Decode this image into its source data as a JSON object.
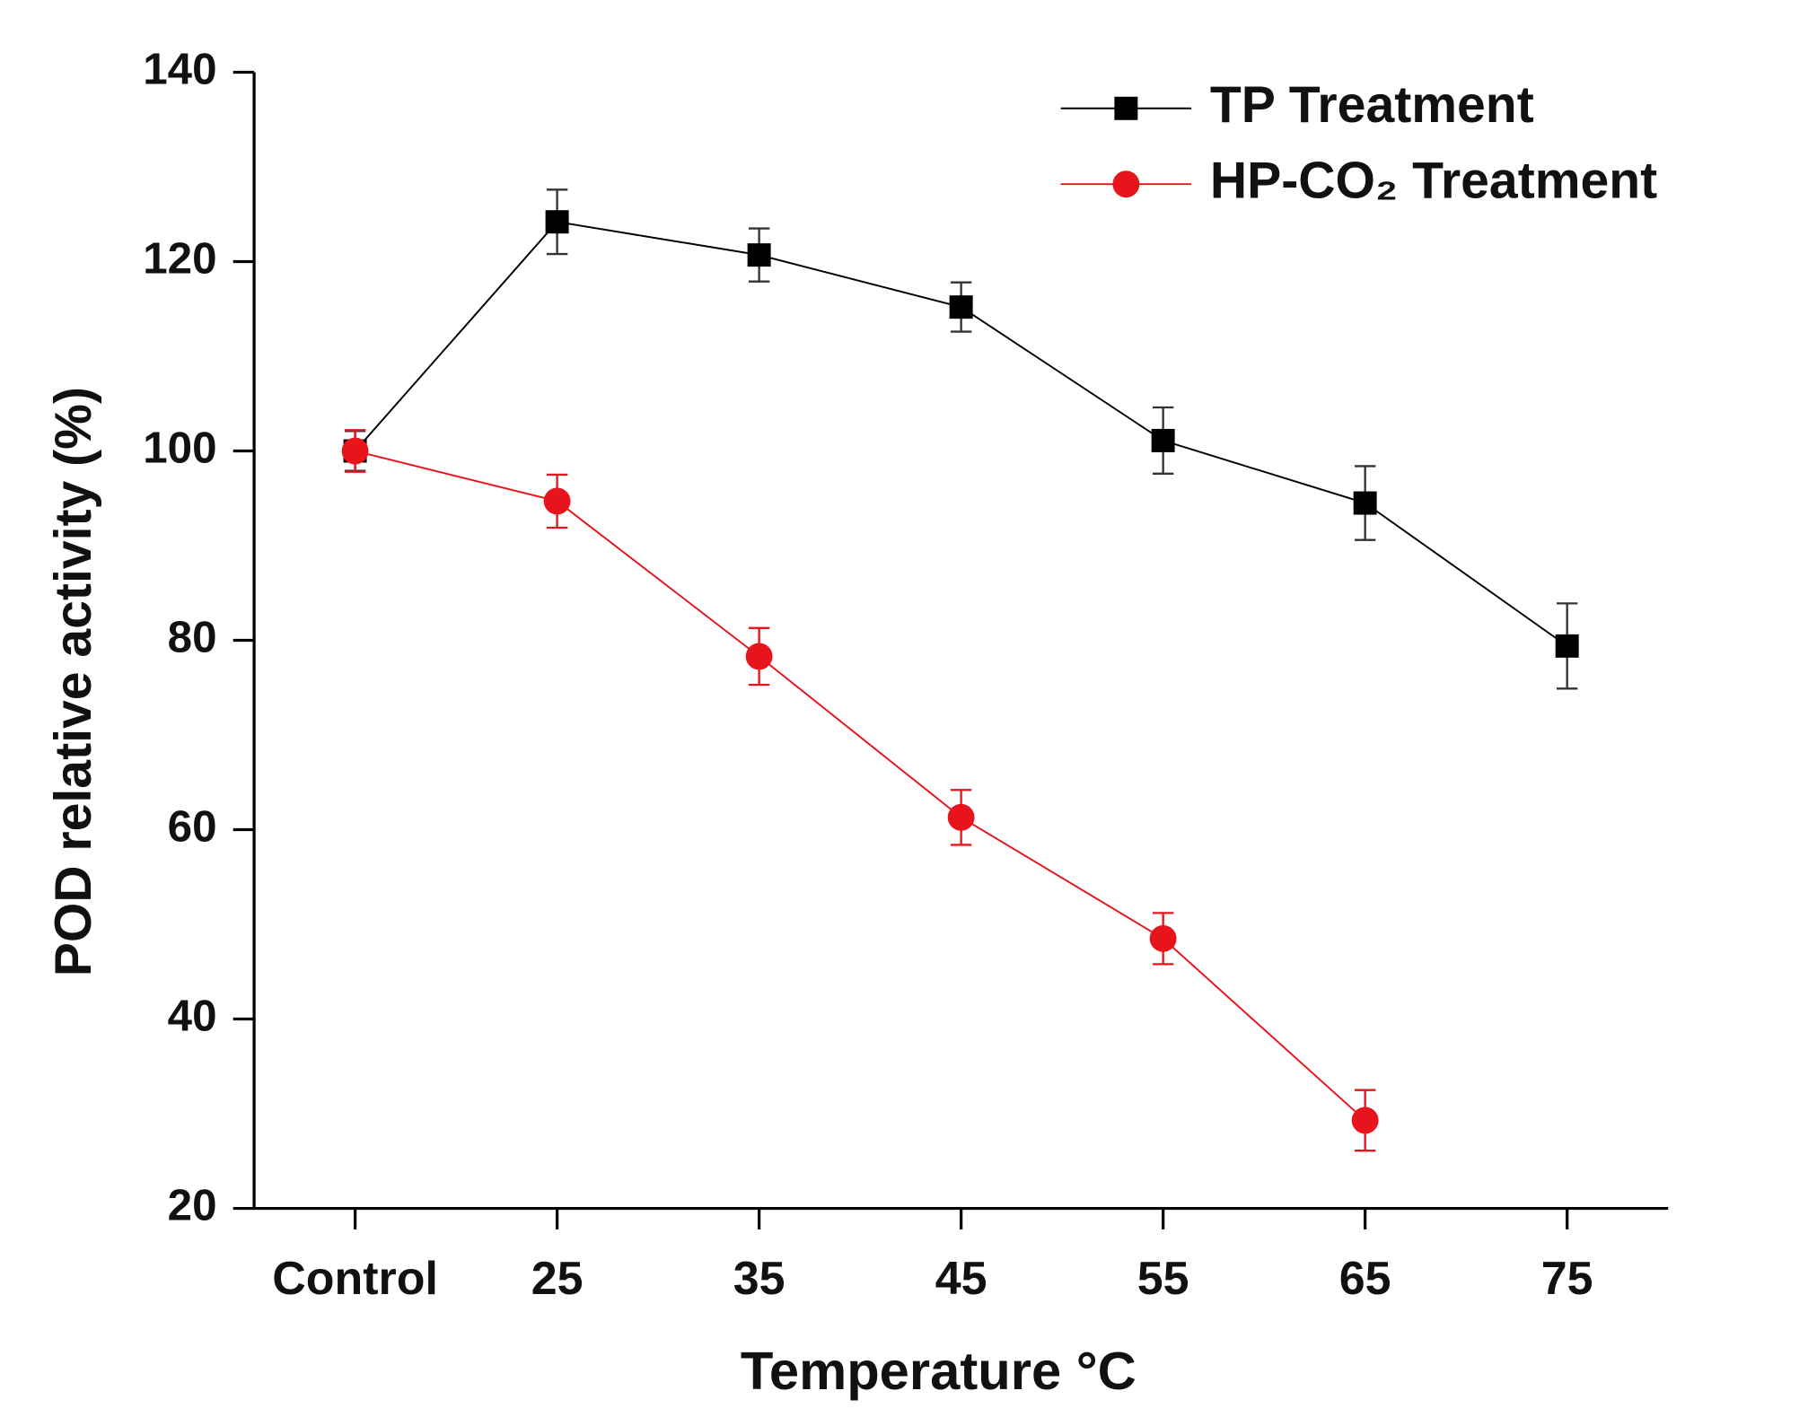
{
  "chart_data": {
    "type": "line",
    "xlabel": "Temperature °C",
    "ylabel": "POD relative activity (%)",
    "categories": [
      "Control",
      "25",
      "35",
      "45",
      "55",
      "65",
      "75"
    ],
    "series": [
      {
        "name": "TP Treatment",
        "color": "#000000",
        "marker": "square",
        "values": [
          100,
          124.2,
          120.7,
          115.2,
          101.1,
          94.5,
          79.4
        ],
        "errors": [
          2.1,
          3.4,
          2.8,
          2.6,
          3.5,
          3.9,
          4.5
        ]
      },
      {
        "name": "HP-CO₂ Treatment",
        "color": "#e8141c",
        "marker": "circle",
        "values": [
          100,
          94.7,
          78.3,
          61.3,
          48.5,
          29.3,
          null
        ],
        "errors": [
          2.2,
          2.8,
          3.0,
          2.9,
          2.7,
          3.2,
          null
        ]
      }
    ],
    "ylim": [
      20,
      140
    ],
    "yticks": [
      20,
      40,
      60,
      80,
      100,
      120,
      140
    ],
    "grid": false,
    "legend": "upper right"
  }
}
